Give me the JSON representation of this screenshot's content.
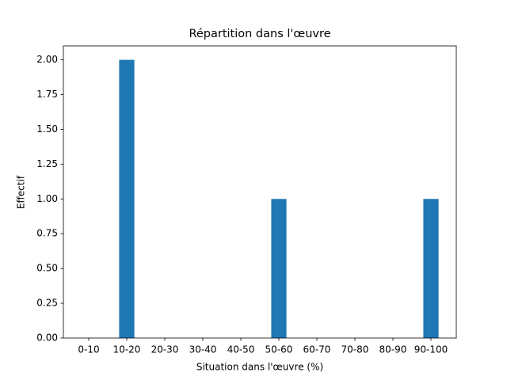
{
  "chart_data": {
    "type": "bar",
    "title": "Répartition dans l'œuvre",
    "x_label": "Situation dans l'œuvre (%)",
    "y_label": "Effectif",
    "categories": [
      "0-10",
      "10-20",
      "20-30",
      "30-40",
      "40-50",
      "50-60",
      "60-70",
      "70-80",
      "80-90",
      "90-100"
    ],
    "values": [
      0,
      2,
      0,
      0,
      0,
      1,
      0,
      0,
      0,
      1
    ],
    "color": "#1f77b4",
    "ylim": [
      0,
      2.1
    ],
    "yticks": [
      {
        "value": 0,
        "label": "0.00"
      },
      {
        "value": 0.25,
        "label": "0.25"
      },
      {
        "value": 0.5,
        "label": "0.50"
      },
      {
        "value": 0.75,
        "label": "0.75"
      },
      {
        "value": 1,
        "label": "1.00"
      },
      {
        "value": 1.25,
        "label": "1.25"
      },
      {
        "value": 1.5,
        "label": "1.50"
      },
      {
        "value": 1.75,
        "label": "1.75"
      },
      {
        "value": 2,
        "label": "2.00"
      }
    ],
    "grid": false
  }
}
